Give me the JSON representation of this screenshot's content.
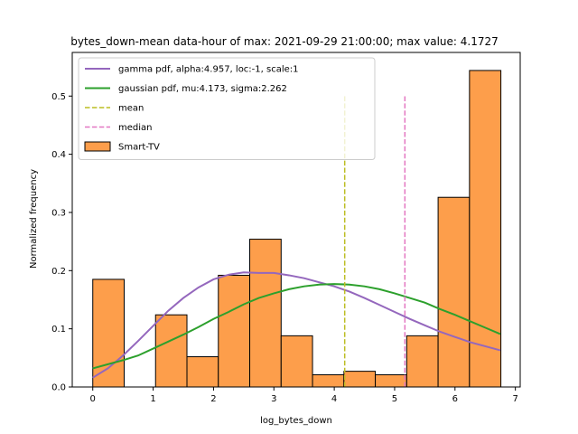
{
  "chart_data": {
    "type": "bar",
    "title": "bytes_down-mean data-hour of max: 2021-09-29 21:00:00; max value: 4.1727",
    "xlabel": "log_bytes_down",
    "ylabel": "Normalized frequency",
    "xlim": [
      -0.34,
      7.08
    ],
    "ylim": [
      0,
      0.575
    ],
    "xticks": [
      0,
      1,
      2,
      3,
      4,
      5,
      6,
      7
    ],
    "yticks": [
      0.0,
      0.1,
      0.2,
      0.3,
      0.4,
      0.5
    ],
    "xtick_labels": [
      "0",
      "1",
      "2",
      "3",
      "4",
      "5",
      "6",
      "7"
    ],
    "ytick_labels": [
      "0.0",
      "0.1",
      "0.2",
      "0.3",
      "0.4",
      "0.5"
    ],
    "legend_position": "top-left",
    "histogram": {
      "name": "Smart-TV",
      "color": "#fd9e4b",
      "edge_color": "#000000",
      "bin_edges": [
        0.0,
        0.52,
        1.04,
        1.56,
        2.08,
        2.6,
        3.12,
        3.64,
        4.16,
        4.68,
        5.2,
        5.72,
        6.24,
        6.76
      ],
      "values": [
        0.185,
        0.0,
        0.124,
        0.052,
        0.192,
        0.254,
        0.088,
        0.021,
        0.027,
        0.021,
        0.088,
        0.326,
        0.544
      ]
    },
    "series": [
      {
        "name": "gamma pdf, alpha:4.957, loc:-1, scale:1",
        "kind": "line",
        "color": "#9467bd",
        "x": [
          0.0,
          0.25,
          0.5,
          0.75,
          1.0,
          1.25,
          1.5,
          1.75,
          2.0,
          2.25,
          2.5,
          2.75,
          3.0,
          3.25,
          3.5,
          3.75,
          4.0,
          4.25,
          4.5,
          4.75,
          5.0,
          5.25,
          5.5,
          5.75,
          6.0,
          6.25,
          6.5,
          6.75
        ],
        "y": [
          0.016,
          0.032,
          0.054,
          0.079,
          0.105,
          0.131,
          0.153,
          0.171,
          0.185,
          0.193,
          0.197,
          0.196,
          0.196,
          0.192,
          0.187,
          0.18,
          0.173,
          0.164,
          0.153,
          0.141,
          0.129,
          0.117,
          0.106,
          0.095,
          0.086,
          0.077,
          0.07,
          0.063
        ]
      },
      {
        "name": "gaussian pdf, mu:4.173, sigma:2.262",
        "kind": "line",
        "color": "#2ca02c",
        "x": [
          0.0,
          0.25,
          0.5,
          0.75,
          1.0,
          1.25,
          1.5,
          1.75,
          2.0,
          2.25,
          2.5,
          2.75,
          3.0,
          3.25,
          3.5,
          3.75,
          4.0,
          4.25,
          4.5,
          4.75,
          5.0,
          5.25,
          5.5,
          5.75,
          6.0,
          6.25,
          6.5,
          6.75
        ],
        "y": [
          0.032,
          0.039,
          0.046,
          0.054,
          0.066,
          0.078,
          0.09,
          0.103,
          0.117,
          0.129,
          0.142,
          0.153,
          0.161,
          0.168,
          0.173,
          0.176,
          0.177,
          0.176,
          0.173,
          0.168,
          0.161,
          0.153,
          0.145,
          0.134,
          0.124,
          0.113,
          0.102,
          0.091
        ]
      },
      {
        "name": "mean",
        "kind": "vline",
        "color": "#bcbd22",
        "x_value": 4.173,
        "y_range": [
          0,
          0.5
        ]
      },
      {
        "name": "median",
        "kind": "vline",
        "color": "#e377c2",
        "x_value": 5.17,
        "y_range": [
          0,
          0.5
        ]
      }
    ]
  }
}
